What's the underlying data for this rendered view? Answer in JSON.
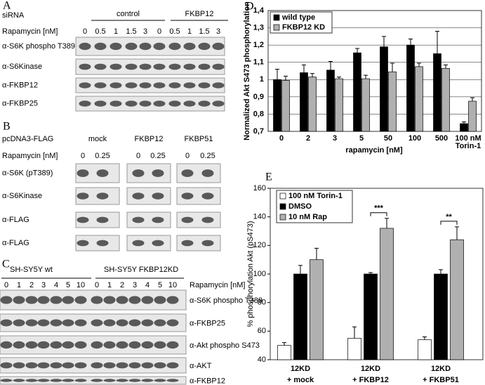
{
  "panel_a": {
    "panel": "A",
    "sirna_label": "siRNA",
    "treatment_label": "Rapamycin [nM]",
    "groups": [
      {
        "name": "control",
        "lanes": [
          0,
          0.5,
          1,
          1.5,
          3
        ]
      },
      {
        "name": "FKBP12",
        "lanes": [
          0,
          0.5,
          1,
          1.5,
          3
        ]
      }
    ],
    "rows": [
      "α-S6K phospho T389",
      "α-S6Kinase",
      "α-FKBP12",
      "α-FKBP25"
    ]
  },
  "panel_b": {
    "panel": "B",
    "construct_label": "pcDNA3-FLAG",
    "treatment_label": "Rapamycin [nM]",
    "groups": [
      {
        "name": "mock",
        "lanes": [
          0,
          0.25
        ]
      },
      {
        "name": "FKBP12",
        "lanes": [
          0,
          0.25
        ]
      },
      {
        "name": "FKBP51",
        "lanes": [
          0,
          0.25
        ]
      }
    ],
    "rows": [
      "α-S6K (pT389)",
      "α-S6Kinase",
      "α-FLAG",
      "α-FLAG"
    ]
  },
  "panel_c": {
    "panel": "C",
    "treatment_label": "Rapamycin [nM]",
    "groups": [
      {
        "name": "SH-SY5Y wt",
        "lanes": [
          0,
          1,
          2,
          3,
          4,
          5,
          10
        ]
      },
      {
        "name": "SH-SY5Y FKBP12KD",
        "lanes": [
          0,
          1,
          2,
          3,
          4,
          5,
          10
        ]
      }
    ],
    "rows": [
      "α-S6K phospho T389",
      "α-FKBP25",
      "α-Akt phospho S473",
      "α-AKT",
      "α-FKBP12"
    ]
  },
  "chart_data": [
    {
      "type": "bar",
      "panel": "D",
      "y_label": "Normalized Akt S473 phosphorylation",
      "x_label": "rapamycin [nM]",
      "categories": [
        [
          "0"
        ],
        [
          "2"
        ],
        [
          "3"
        ],
        [
          "5"
        ],
        [
          "50"
        ],
        [
          "100"
        ],
        [
          "500"
        ],
        [
          "100 nM",
          "Torin-1"
        ]
      ],
      "series": [
        {
          "name": "wild type",
          "color": "#000000",
          "values": [
            1.0,
            1.04,
            1.055,
            1.155,
            1.19,
            1.2,
            1.15,
            0.745
          ],
          "errors": [
            0.06,
            0.045,
            0.05,
            0.025,
            0.06,
            0.035,
            0.13,
            0.01
          ]
        },
        {
          "name": "FKBP12 KD",
          "color": "#b0b0b0",
          "values": [
            0.995,
            1.015,
            1.005,
            1.005,
            1.045,
            1.075,
            1.065,
            0.875
          ],
          "errors": [
            0.025,
            0.02,
            0.01,
            0.02,
            0.05,
            0.02,
            0.02,
            0.02
          ]
        }
      ],
      "ylim": [
        0.7,
        1.4
      ],
      "yticks": [
        {
          "value": 0.7,
          "label": "0,7"
        },
        {
          "value": 0.8,
          "label": "0,8"
        },
        {
          "value": 0.9,
          "label": "0,9"
        },
        1,
        {
          "value": 1.1,
          "label": "1,1"
        },
        {
          "value": 1.2,
          "label": "1,2"
        },
        {
          "value": 1.3,
          "label": "1,3"
        },
        {
          "value": 1.4,
          "label": "1,4"
        }
      ],
      "grid": true,
      "legend": "top-left"
    },
    {
      "type": "bar",
      "panel": "E",
      "y_label": "% phosphorylation Akt (pS473)",
      "categories": [
        [
          "12KD",
          "+ mock"
        ],
        [
          "12KD",
          "+ FKBP12"
        ],
        [
          "12KD",
          "+ FKBP51"
        ]
      ],
      "series": [
        {
          "name": "100 nM Torin-1",
          "color": "#ffffff",
          "values": [
            50,
            55,
            54
          ],
          "errors": [
            2,
            8,
            2
          ]
        },
        {
          "name": "DMSO",
          "color": "#000000",
          "values": [
            100,
            100,
            100
          ],
          "errors": [
            6,
            1,
            3
          ]
        },
        {
          "name": "10 nM Rap",
          "color": "#b0b0b0",
          "values": [
            110,
            132,
            124
          ],
          "errors": [
            8,
            7,
            9
          ]
        }
      ],
      "significance": [
        null,
        "***",
        "**"
      ],
      "ylim": [
        40,
        160
      ],
      "yticks": [
        40,
        60,
        80,
        100,
        120,
        140,
        160
      ],
      "grid": false,
      "legend": "top-left"
    }
  ]
}
